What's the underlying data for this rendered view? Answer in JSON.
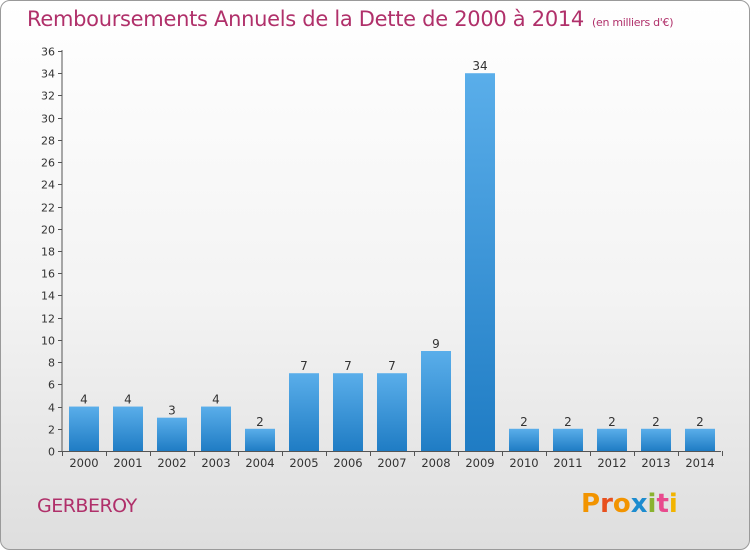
{
  "title": "Remboursements Annuels de la Dette de 2000 à 2014",
  "unit_note": "(en milliers d'€)",
  "commune": "GERBEROY",
  "logo_text": "Proxiti",
  "colors": {
    "title": "#b0306a",
    "bar_light": "#5aaeea",
    "bar_dark": "#1f7cc4"
  },
  "chart_data": {
    "type": "bar",
    "title": "Remboursements Annuels de la Dette de 2000 à 2014",
    "subtitle": "(en milliers d'€)",
    "categories": [
      "2000",
      "2001",
      "2002",
      "2003",
      "2004",
      "2005",
      "2006",
      "2007",
      "2008",
      "2009",
      "2010",
      "2011",
      "2012",
      "2013",
      "2014"
    ],
    "values": [
      4,
      4,
      3,
      4,
      2,
      7,
      7,
      7,
      9,
      34,
      2,
      2,
      2,
      2,
      2
    ],
    "xlabel": "",
    "ylabel": "",
    "ylim": [
      0,
      36
    ],
    "yticks": [
      0,
      2,
      4,
      6,
      8,
      10,
      12,
      14,
      16,
      18,
      20,
      22,
      24,
      26,
      28,
      30,
      32,
      34,
      36
    ],
    "grid": false,
    "legend": "none"
  }
}
